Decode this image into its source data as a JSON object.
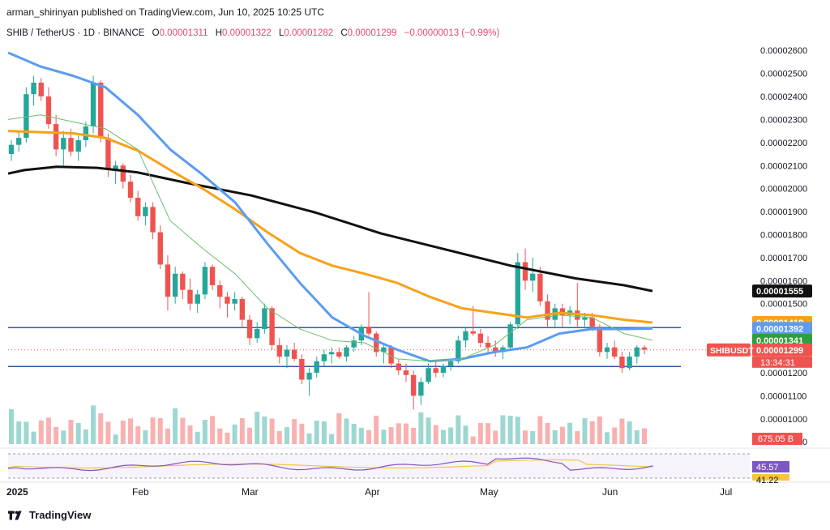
{
  "header": {
    "publisher_line": "arman_shirinyan published on TradingView.com, Jun 10, 2025 10:25 UTC"
  },
  "symbol": {
    "name": "SHIB / TetherUS · 1D · BINANCE",
    "o_label": "O",
    "o_value": "0.00001311",
    "h_label": "H",
    "h_value": "0.00001322",
    "l_label": "L",
    "l_value": "0.00001282",
    "c_label": "C",
    "c_value": "0.00001299",
    "change": "−0.00000013 (−0.99%)"
  },
  "footer": {
    "brand": "TradingView"
  },
  "colors": {
    "up": "#26a69a",
    "down": "#ef5350",
    "ma_black": "#111111",
    "ma_orange": "#f7a21b",
    "ma_blue": "#5b9cf0",
    "ma_green": "#6cbf6c",
    "hline": "#2e5aa8"
  },
  "chart_data": {
    "type": "candlestick",
    "symbol": "SHIB / TetherUS",
    "timeframe": "1D",
    "y_ticks": [
      "0.00002600",
      "0.00002500",
      "0.00002400",
      "0.00002300",
      "0.00002200",
      "0.00002100",
      "0.00002000",
      "0.00001900",
      "0.00001800",
      "0.00001700",
      "0.00001600",
      "0.00001500",
      "0.00001400",
      "0.00001300",
      "0.00001200",
      "0.00001100",
      "0.00001000",
      "0.00000900"
    ],
    "x_ticks": [
      "2025",
      "Feb",
      "Mar",
      "Apr",
      "May",
      "Jun",
      "Jul"
    ],
    "ylim": [
      8.9e-06,
      2.65e-05
    ],
    "price_labels": [
      {
        "value": "0.00001555",
        "color": "#111111",
        "text_color": "#ffffff"
      },
      {
        "value": "0.00001418",
        "color": "#f7a21b",
        "text_color": "#ffffff"
      },
      {
        "value": "0.00001392",
        "color": "#5b9cf0",
        "text_color": "#ffffff"
      },
      {
        "value": "0.00001341",
        "color": "#2e9e3e",
        "text_color": "#ffffff"
      },
      {
        "value": "0.00001299",
        "color": "#ef5350",
        "text_color": "#ffffff"
      }
    ],
    "symbol_tag": "SHIBUSDT",
    "countdown": "13:34:31",
    "volume_label": "675.05 B",
    "rsi_labels": [
      "45.57",
      "41.22"
    ],
    "horizontal_levels": [
      1.396e-05,
      1.227e-05
    ],
    "moving_averages": [
      {
        "color": "#111111",
        "points": [
          [
            0,
            2.065e-05
          ],
          [
            20,
            2.08e-05
          ],
          [
            60,
            2.095e-05
          ],
          [
            110,
            2.09e-05
          ],
          [
            160,
            2.07e-05
          ],
          [
            220,
            2.025e-05
          ],
          [
            300,
            1.97e-05
          ],
          [
            380,
            1.895e-05
          ],
          [
            460,
            1.805e-05
          ],
          [
            540,
            1.735e-05
          ],
          [
            620,
            1.665e-05
          ],
          [
            700,
            1.61e-05
          ],
          [
            760,
            1.58e-05
          ],
          [
            795,
            1.555e-05
          ]
        ]
      },
      {
        "color": "#f7a21b",
        "points": [
          [
            0,
            2.25e-05
          ],
          [
            40,
            2.245e-05
          ],
          [
            80,
            2.24e-05
          ],
          [
            120,
            2.22e-05
          ],
          [
            160,
            2.165e-05
          ],
          [
            200,
            2.08e-05
          ],
          [
            240,
            2e-05
          ],
          [
            280,
            1.91e-05
          ],
          [
            320,
            1.81e-05
          ],
          [
            360,
            1.72e-05
          ],
          [
            400,
            1.665e-05
          ],
          [
            440,
            1.63e-05
          ],
          [
            480,
            1.59e-05
          ],
          [
            520,
            1.53e-05
          ],
          [
            560,
            1.48e-05
          ],
          [
            600,
            1.46e-05
          ],
          [
            640,
            1.44e-05
          ],
          [
            680,
            1.46e-05
          ],
          [
            720,
            1.45e-05
          ],
          [
            760,
            1.43e-05
          ],
          [
            795,
            1.418e-05
          ]
        ]
      },
      {
        "color": "#5b9cf0",
        "points": [
          [
            0,
            2.59e-05
          ],
          [
            40,
            2.53e-05
          ],
          [
            80,
            2.49e-05
          ],
          [
            120,
            2.44e-05
          ],
          [
            160,
            2.32e-05
          ],
          [
            200,
            2.17e-05
          ],
          [
            240,
            2.06e-05
          ],
          [
            280,
            1.94e-05
          ],
          [
            320,
            1.76e-05
          ],
          [
            360,
            1.59e-05
          ],
          [
            400,
            1.44e-05
          ],
          [
            440,
            1.36e-05
          ],
          [
            480,
            1.3e-05
          ],
          [
            520,
            1.25e-05
          ],
          [
            560,
            1.26e-05
          ],
          [
            600,
            1.29e-05
          ],
          [
            640,
            1.31e-05
          ],
          [
            680,
            1.37e-05
          ],
          [
            720,
            1.39e-05
          ],
          [
            760,
            1.39e-05
          ],
          [
            795,
            1.392e-05
          ]
        ]
      },
      {
        "color": "#6cbf6c",
        "points": [
          [
            0,
            2.3e-05
          ],
          [
            40,
            2.32e-05
          ],
          [
            80,
            2.29e-05
          ],
          [
            120,
            2.26e-05
          ],
          [
            160,
            2.17e-05
          ],
          [
            200,
            1.86e-05
          ],
          [
            240,
            1.74e-05
          ],
          [
            280,
            1.63e-05
          ],
          [
            320,
            1.48e-05
          ],
          [
            360,
            1.39e-05
          ],
          [
            400,
            1.34e-05
          ],
          [
            440,
            1.33e-05
          ],
          [
            480,
            1.26e-05
          ],
          [
            520,
            1.25e-05
          ],
          [
            560,
            1.26e-05
          ],
          [
            600,
            1.32e-05
          ],
          [
            640,
            1.43e-05
          ],
          [
            680,
            1.45e-05
          ],
          [
            720,
            1.44e-05
          ],
          [
            760,
            1.37e-05
          ],
          [
            795,
            1.341e-05
          ]
        ]
      }
    ],
    "candles": [
      [
        2.15e-05,
        2.21e-05,
        2.12e-05,
        2.19e-05
      ],
      [
        2.19e-05,
        2.25e-05,
        2.16e-05,
        2.22e-05
      ],
      [
        2.22e-05,
        2.44e-05,
        2.2e-05,
        2.41e-05
      ],
      [
        2.41e-05,
        2.49e-05,
        2.36e-05,
        2.46e-05
      ],
      [
        2.46e-05,
        2.48e-05,
        2.38e-05,
        2.4e-05
      ],
      [
        2.4e-05,
        2.44e-05,
        2.26e-05,
        2.28e-05
      ],
      [
        2.28e-05,
        2.32e-05,
        2.14e-05,
        2.17e-05
      ],
      [
        2.17e-05,
        2.25e-05,
        2.1e-05,
        2.22e-05
      ],
      [
        2.22e-05,
        2.26e-05,
        2.14e-05,
        2.16e-05
      ],
      [
        2.16e-05,
        2.23e-05,
        2.12e-05,
        2.21e-05
      ],
      [
        2.21e-05,
        2.29e-05,
        2.18e-05,
        2.27e-05
      ],
      [
        2.27e-05,
        2.49e-05,
        2.24e-05,
        2.46e-05
      ],
      [
        2.46e-05,
        2.47e-05,
        2.2e-05,
        2.22e-05
      ],
      [
        2.22e-05,
        2.24e-05,
        2.05e-05,
        2.08e-05
      ],
      [
        2.08e-05,
        2.12e-05,
        2.02e-05,
        2.1e-05
      ],
      [
        2.1e-05,
        2.11e-05,
        2e-05,
        2.03e-05
      ],
      [
        2.03e-05,
        2.06e-05,
        1.94e-05,
        1.96e-05
      ],
      [
        1.96e-05,
        1.99e-05,
        1.86e-05,
        1.88e-05
      ],
      [
        1.88e-05,
        1.94e-05,
        1.84e-05,
        1.92e-05
      ],
      [
        1.92e-05,
        1.94e-05,
        1.78e-05,
        1.81e-05
      ],
      [
        1.81e-05,
        1.84e-05,
        1.65e-05,
        1.67e-05
      ],
      [
        1.67e-05,
        1.71e-05,
        1.47e-05,
        1.53e-05
      ],
      [
        1.53e-05,
        1.66e-05,
        1.5e-05,
        1.63e-05
      ],
      [
        1.63e-05,
        1.64e-05,
        1.52e-05,
        1.56e-05
      ],
      [
        1.56e-05,
        1.61e-05,
        1.47e-05,
        1.5e-05
      ],
      [
        1.5e-05,
        1.56e-05,
        1.46e-05,
        1.54e-05
      ],
      [
        1.54e-05,
        1.68e-05,
        1.52e-05,
        1.66e-05
      ],
      [
        1.66e-05,
        1.67e-05,
        1.56e-05,
        1.58e-05
      ],
      [
        1.58e-05,
        1.6e-05,
        1.48e-05,
        1.53e-05
      ],
      [
        1.53e-05,
        1.55e-05,
        1.44e-05,
        1.5e-05
      ],
      [
        1.5e-05,
        1.55e-05,
        1.47e-05,
        1.52e-05
      ],
      [
        1.52e-05,
        1.53e-05,
        1.4e-05,
        1.43e-05
      ],
      [
        1.43e-05,
        1.45e-05,
        1.32e-05,
        1.35e-05
      ],
      [
        1.35e-05,
        1.42e-05,
        1.33e-05,
        1.39e-05
      ],
      [
        1.39e-05,
        1.5e-05,
        1.37e-05,
        1.48e-05
      ],
      [
        1.48e-05,
        1.49e-05,
        1.3e-05,
        1.32e-05
      ],
      [
        1.32e-05,
        1.35e-05,
        1.24e-05,
        1.27e-05
      ],
      [
        1.27e-05,
        1.32e-05,
        1.22e-05,
        1.3e-05
      ],
      [
        1.3e-05,
        1.33e-05,
        1.25e-05,
        1.26e-05
      ],
      [
        1.26e-05,
        1.28e-05,
        1.15e-05,
        1.17e-05
      ],
      [
        1.17e-05,
        1.22e-05,
        1.1e-05,
        1.2e-05
      ],
      [
        1.2e-05,
        1.27e-05,
        1.18e-05,
        1.25e-05
      ],
      [
        1.25e-05,
        1.3e-05,
        1.23e-05,
        1.28e-05
      ],
      [
        1.28e-05,
        1.31e-05,
        1.24e-05,
        1.29e-05
      ],
      [
        1.29e-05,
        1.31e-05,
        1.26e-05,
        1.27e-05
      ],
      [
        1.27e-05,
        1.32e-05,
        1.25e-05,
        1.31e-05
      ],
      [
        1.31e-05,
        1.36e-05,
        1.29e-05,
        1.34e-05
      ],
      [
        1.34e-05,
        1.41e-05,
        1.32e-05,
        1.4e-05
      ],
      [
        1.4e-05,
        1.55e-05,
        1.36e-05,
        1.37e-05
      ],
      [
        1.37e-05,
        1.38e-05,
        1.27e-05,
        1.29e-05
      ],
      [
        1.29e-05,
        1.33e-05,
        1.24e-05,
        1.31e-05
      ],
      [
        1.31e-05,
        1.32e-05,
        1.22e-05,
        1.24e-05
      ],
      [
        1.24e-05,
        1.26e-05,
        1.19e-05,
        1.21e-05
      ],
      [
        1.21e-05,
        1.24e-05,
        1.16e-05,
        1.19e-05
      ],
      [
        1.19e-05,
        1.21e-05,
        1.04e-05,
        1.1e-05
      ],
      [
        1.1e-05,
        1.18e-05,
        1.06e-05,
        1.16e-05
      ],
      [
        1.16e-05,
        1.24e-05,
        1.15e-05,
        1.22e-05
      ],
      [
        1.22e-05,
        1.25e-05,
        1.18e-05,
        1.2e-05
      ],
      [
        1.2e-05,
        1.24e-05,
        1.18e-05,
        1.23e-05
      ],
      [
        1.23e-05,
        1.26e-05,
        1.21e-05,
        1.25e-05
      ],
      [
        1.25e-05,
        1.36e-05,
        1.24e-05,
        1.34e-05
      ],
      [
        1.34e-05,
        1.4e-05,
        1.31e-05,
        1.38e-05
      ],
      [
        1.38e-05,
        1.49e-05,
        1.36e-05,
        1.37e-05
      ],
      [
        1.37e-05,
        1.39e-05,
        1.31e-05,
        1.33e-05
      ],
      [
        1.33e-05,
        1.36e-05,
        1.28e-05,
        1.31e-05
      ],
      [
        1.31e-05,
        1.34e-05,
        1.27e-05,
        1.29e-05
      ],
      [
        1.29e-05,
        1.32e-05,
        1.26e-05,
        1.31e-05
      ],
      [
        1.31e-05,
        1.42e-05,
        1.3e-05,
        1.41e-05
      ],
      [
        1.41e-05,
        1.72e-05,
        1.39e-05,
        1.68e-05
      ],
      [
        1.68e-05,
        1.74e-05,
        1.56e-05,
        1.6e-05
      ],
      [
        1.6e-05,
        1.7e-05,
        1.55e-05,
        1.63e-05
      ],
      [
        1.63e-05,
        1.66e-05,
        1.49e-05,
        1.51e-05
      ],
      [
        1.51e-05,
        1.54e-05,
        1.4e-05,
        1.43e-05
      ],
      [
        1.43e-05,
        1.5e-05,
        1.4e-05,
        1.48e-05
      ],
      [
        1.48e-05,
        1.5e-05,
        1.4e-05,
        1.45e-05
      ],
      [
        1.45e-05,
        1.49e-05,
        1.41e-05,
        1.47e-05
      ],
      [
        1.47e-05,
        1.59e-05,
        1.4e-05,
        1.43e-05
      ],
      [
        1.43e-05,
        1.46e-05,
        1.4e-05,
        1.44e-05
      ],
      [
        1.44e-05,
        1.46e-05,
        1.38e-05,
        1.4e-05
      ],
      [
        1.4e-05,
        1.41e-05,
        1.27e-05,
        1.29e-05
      ],
      [
        1.29e-05,
        1.33e-05,
        1.26e-05,
        1.31e-05
      ],
      [
        1.31e-05,
        1.34e-05,
        1.26e-05,
        1.27e-05
      ],
      [
        1.27e-05,
        1.29e-05,
        1.2e-05,
        1.22e-05
      ],
      [
        1.22e-05,
        1.29e-05,
        1.21e-05,
        1.27e-05
      ],
      [
        1.27e-05,
        1.32e-05,
        1.24e-05,
        1.31e-05
      ],
      [
        1.31e-05,
        1.32e-05,
        1.28e-05,
        1.3e-05
      ]
    ]
  }
}
